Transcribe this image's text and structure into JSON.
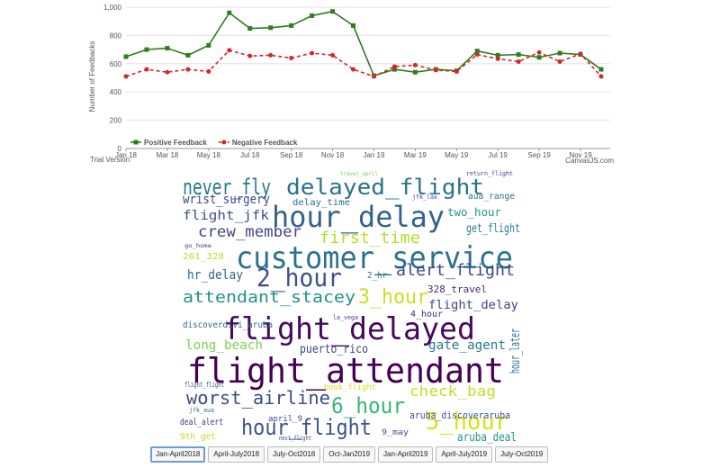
{
  "chart_data": {
    "type": "line",
    "y_label": "Number of Feedbacks",
    "categories": [
      "Jan 18",
      null,
      "Mar 18",
      null,
      "May 18",
      null,
      "Jul 18",
      null,
      "Sep 18",
      null,
      "Nov 18",
      null,
      "Jan 19",
      null,
      "Mar 19",
      null,
      "May 19",
      null,
      "Jul 19",
      null,
      "Sep 19",
      null,
      "Nov 19",
      null
    ],
    "series": [
      {
        "name": "Positive Feedback",
        "color": "#2e7d1f",
        "marker": "square",
        "dash": false,
        "values": [
          650,
          700,
          710,
          660,
          730,
          960,
          850,
          855,
          870,
          940,
          970,
          870,
          515,
          560,
          540,
          560,
          550,
          690,
          660,
          665,
          645,
          675,
          665,
          560
        ]
      },
      {
        "name": "Negative Feedback",
        "color": "#d62728",
        "marker": "circle",
        "dash": true,
        "values": [
          510,
          560,
          540,
          560,
          545,
          695,
          655,
          660,
          640,
          675,
          660,
          560,
          510,
          580,
          590,
          555,
          545,
          665,
          635,
          615,
          680,
          615,
          670,
          510
        ]
      }
    ],
    "ylim": [
      0,
      1000
    ],
    "yticks": [
      0,
      200,
      400,
      600,
      800,
      {
        "value": 1000,
        "label": "1,000"
      }
    ],
    "grid": true,
    "legend": "bottom"
  },
  "watermarks": {
    "left": "Trial Version",
    "right": "CanvasJS.com"
  },
  "word_cloud": {
    "words": [
      "flight_attendant",
      "flight_delayed",
      "customer_service",
      "hour_delay",
      "never_fly",
      "delayed_flight",
      "2_hour",
      "hour_flight",
      "worst_airline",
      "6_hour",
      "5_hour",
      "3_hour",
      "first_time",
      "crew_member",
      "alert_flight",
      "attendant_stacey",
      "flight_jfk",
      "wrist_surgery",
      "get_flight",
      "two_hour",
      "delay_time",
      "hr_delay",
      "puerto_rico",
      "gate_agent",
      "long_beach",
      "check_bag",
      "flight_delay",
      "328_travel",
      "hour_later",
      "aruba_discoveraruba",
      "aruba_deal",
      "deal_alert",
      "april_9",
      "9th_get",
      "9_may",
      "261_328",
      "4_hour",
      "discoverdivi_aruba",
      "aua_range",
      "book_flight",
      "travel_april",
      "return_flight",
      "jfk_lax",
      "go_home",
      "flight_flight",
      "jfk_aua",
      "next_flight",
      "la_vega",
      "2_hr"
    ]
  },
  "buttons": [
    "Jan-April2018",
    "April-July2018",
    "July-Oct2018",
    "Oct-Jan2019",
    "Jan-April2019",
    "April-July2019",
    "July-Oct2019"
  ]
}
